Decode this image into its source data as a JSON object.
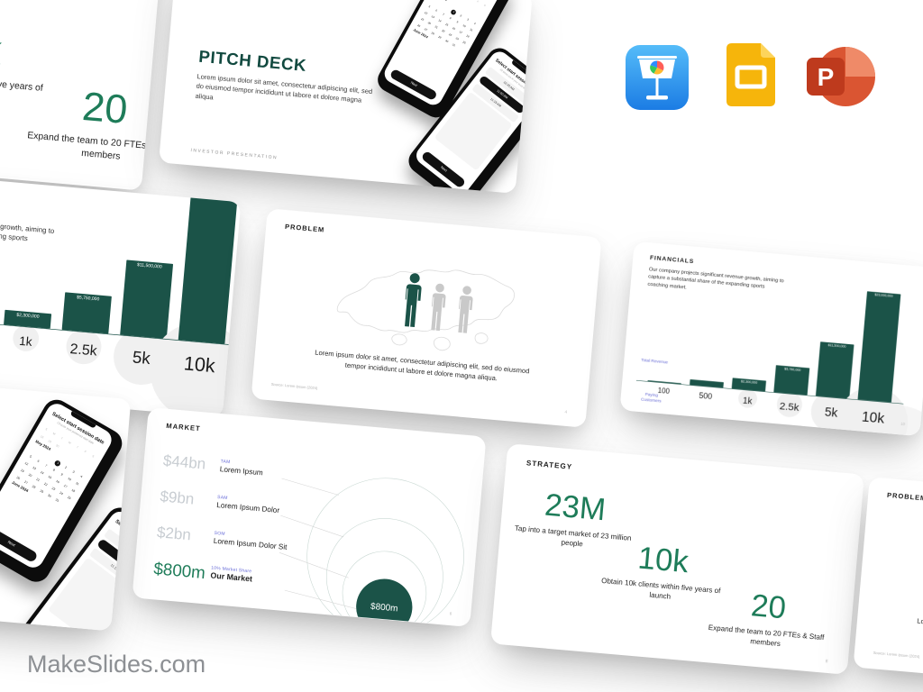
{
  "brand": "MakeSlides.com",
  "icons": {
    "keynote": "Apple Keynote",
    "google_slides": "Google Slides",
    "powerpoint": "Microsoft PowerPoint"
  },
  "cover": {
    "title": "PITCH DECK",
    "body": "Lorem ipsum dolor sit amet, consectetur adipiscing elit, sed do eiusmod tempor incididunt ut labore et dolore magna aliqua",
    "footer": "INVESTOR  PRESENTATION",
    "phone_calendar": {
      "heading": "Select start session date",
      "subheading": "Choose your preferred start date",
      "weekdays": [
        "S",
        "M",
        "T",
        "W",
        "T",
        "F",
        "S"
      ],
      "month1": "May 2024",
      "month2": "June 2024",
      "selected_day": 1,
      "next_label": "Next"
    },
    "phone_time": {
      "heading": "Select start session time",
      "subheading": "All times are in your local time",
      "times": [
        "10:45 AM",
        "11:00 AM",
        "11:15 AM"
      ],
      "selected_index": 1,
      "next_label": "Next"
    }
  },
  "strategy": {
    "title": "STRATEGY",
    "stats": [
      {
        "value": "23M",
        "caption": "Tap into a target market of 23 million people"
      },
      {
        "value": "10k",
        "caption": "Obtain 10k clients within five years of launch"
      },
      {
        "value": "20",
        "caption": "Expand the team to 20 FTEs & Staff members"
      }
    ],
    "page": "8"
  },
  "financials": {
    "title": "FINANCIALS",
    "body": "Our company projects significant revenue growth, aiming to capture a substantial share of the expanding sports coaching market.",
    "ylabel": "Total Revenue",
    "xlabel": "Paying Customers",
    "page": "10"
  },
  "chart_data": {
    "type": "bar",
    "title": "FINANCIALS",
    "categories": [
      "100",
      "500",
      "1k",
      "2.5k",
      "5k",
      "10k"
    ],
    "values": [
      230000,
      1150000,
      2300000,
      5750000,
      11500000,
      23000000
    ],
    "bar_labels": [
      "$230,000",
      "$1,150,000",
      "$2,300,000",
      "$5,750,000",
      "$11,500,000",
      "$23,000,000"
    ],
    "xlabel": "Paying Customers",
    "ylabel": "Total Revenue",
    "bar_color": "#1b5348",
    "ylim": [
      0,
      23000000
    ],
    "grid": false,
    "legend": "none"
  },
  "problem": {
    "title": "PROBLEM",
    "body": "Lorem ipsum dolor sit amet, consectetur adipiscing elit, sed do eiusmod tempor incididunt ut labore et dolore magna aliqua.",
    "source": "Source: Lorem Ipsum (2024)",
    "page": "4"
  },
  "market": {
    "title": "MARKET",
    "rows": [
      {
        "value": "$44bn",
        "tag": "TAM",
        "name": "Lorem Ipsum"
      },
      {
        "value": "$9bn",
        "tag": "SAM",
        "name": "Lorem Ipsum Dolor"
      },
      {
        "value": "$2bn",
        "tag": "SOM",
        "name": "Lorem Ipsum Dolor Sit"
      },
      {
        "value": "$800m",
        "tag": "10% Market Share",
        "name": "Our Market"
      }
    ],
    "bubble_label": "$800m",
    "page": "6"
  },
  "colors": {
    "teal_dark": "#1b5348",
    "green_accent": "#1e7c59",
    "purple_label": "#6a6ed8",
    "gray_value": "#c8cdd2"
  }
}
